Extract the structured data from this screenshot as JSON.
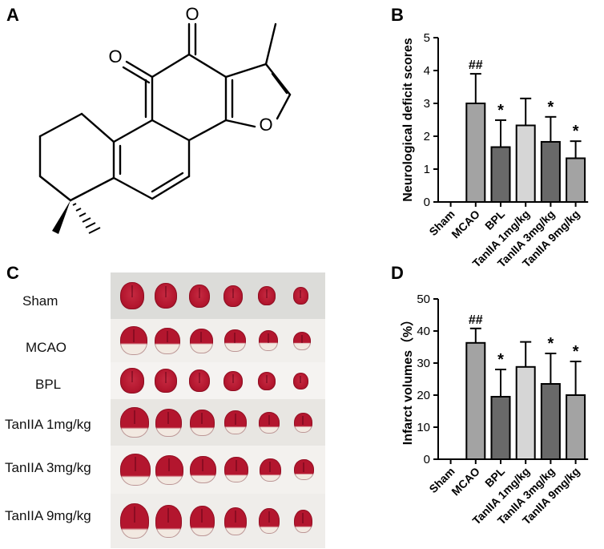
{
  "panels": {
    "a": "A",
    "b": "B",
    "c": "C",
    "d": "D"
  },
  "structure": {
    "atom_o1": "O",
    "atom_o2": "O",
    "atom_o3": "O"
  },
  "photo": {
    "groups": [
      "Sham",
      "MCAO",
      "BPL",
      "TanIIA 1mg/kg",
      "TanIIA 3mg/kg",
      "TanIIA 9mg/kg"
    ],
    "slices_per_group": 6,
    "colors": {
      "tissue": "#b3162e",
      "infarct": "#f2e9e1",
      "background": "#dcdcd9"
    }
  },
  "chart_data": [
    {
      "type": "bar",
      "panel": "B",
      "title": "",
      "xlabel": "",
      "ylabel": "Neurological deficit scores",
      "ylim": [
        0,
        5
      ],
      "yticks": [
        0,
        1,
        2,
        3,
        4,
        5
      ],
      "categories": [
        "Sham",
        "MCAO",
        "BPL",
        "TanIIA 1mg/kg",
        "TanIIA 3mg/kg",
        "TanIIA 9mg/kg"
      ],
      "values": [
        0,
        3.0,
        1.67,
        2.33,
        1.83,
        1.33
      ],
      "error": [
        0,
        0.9,
        0.82,
        0.82,
        0.76,
        0.52
      ],
      "annotations": [
        "",
        "##",
        "*",
        "",
        "*",
        "*"
      ],
      "colors": [
        "#a3a3a3",
        "#a3a3a3",
        "#696969",
        "#d6d6d6",
        "#696969",
        "#a3a3a3"
      ]
    },
    {
      "type": "bar",
      "panel": "D",
      "title": "",
      "xlabel": "",
      "ylabel": "Infarct volumes（%）",
      "ylim": [
        0,
        50
      ],
      "yticks": [
        0,
        10,
        20,
        30,
        40,
        50
      ],
      "categories": [
        "Sham",
        "MCAO",
        "BPL",
        "TanIIA 1mg/kg",
        "TanIIA 3mg/kg",
        "TanIIA 9mg/kg"
      ],
      "values": [
        0,
        36.3,
        19.5,
        28.8,
        23.5,
        20.0
      ],
      "error": [
        0,
        4.5,
        8.5,
        7.8,
        9.5,
        10.5
      ],
      "annotations": [
        "",
        "##",
        "*",
        "",
        "*",
        "*"
      ],
      "colors": [
        "#a3a3a3",
        "#a3a3a3",
        "#696969",
        "#d6d6d6",
        "#696969",
        "#a3a3a3"
      ]
    }
  ]
}
